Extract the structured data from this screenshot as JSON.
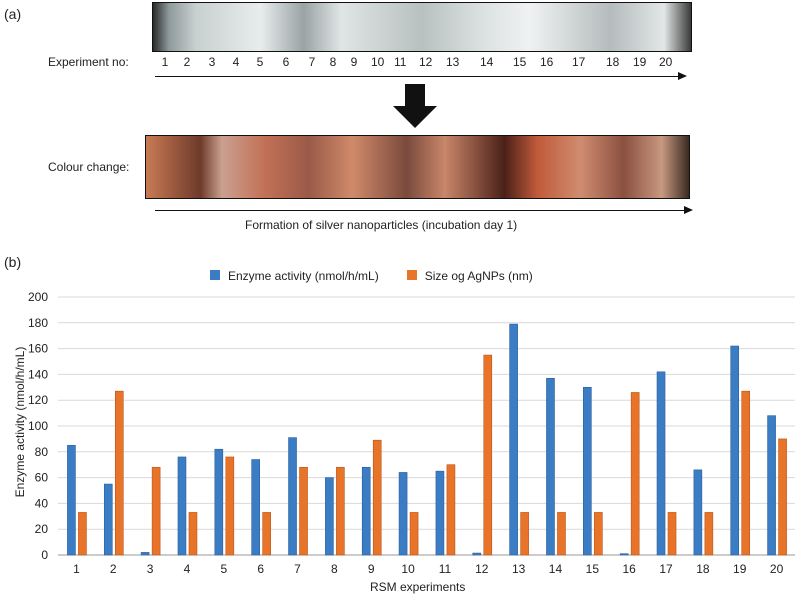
{
  "panel_a": {
    "label": "(a)",
    "experiment_label": "Experiment no:",
    "experiment_numbers": [
      "1",
      "2",
      "3",
      "4",
      "5",
      "6",
      "7",
      "8",
      "9",
      "10",
      "11",
      "12",
      "13",
      "14",
      "15",
      "16",
      "17",
      "18",
      "19",
      "20"
    ],
    "colour_change_label": "Colour change:",
    "caption": "Formation of silver nanoparticles (incubation day 1)"
  },
  "panel_b": {
    "label": "(b)"
  },
  "chart_data": {
    "type": "bar",
    "title": "",
    "xlabel": "RSM experiments",
    "ylabel": "Enzyme activity (nmol/h/mL)",
    "ylim": [
      0,
      200
    ],
    "yticks": [
      0,
      20,
      40,
      60,
      80,
      100,
      120,
      140,
      160,
      180,
      200
    ],
    "grid": true,
    "legend": "top-center",
    "categories": [
      "1",
      "2",
      "3",
      "4",
      "5",
      "6",
      "7",
      "8",
      "9",
      "10",
      "11",
      "12",
      "13",
      "14",
      "15",
      "16",
      "17",
      "18",
      "19",
      "20"
    ],
    "series": [
      {
        "name": "Enzyme activity (nmol/h/mL)",
        "color": "#3b7dc4",
        "values": [
          85,
          55,
          2,
          76,
          82,
          74,
          91,
          60,
          68,
          64,
          65,
          1.5,
          179,
          137,
          130,
          1,
          142,
          66,
          162,
          108
        ]
      },
      {
        "name": "Size og AgNPs (nm)",
        "color": "#e8742a",
        "values": [
          33,
          127,
          68,
          33,
          76,
          33,
          68,
          68,
          89,
          33,
          70,
          155,
          33,
          33,
          33,
          126,
          33,
          33,
          127,
          90
        ]
      }
    ]
  }
}
